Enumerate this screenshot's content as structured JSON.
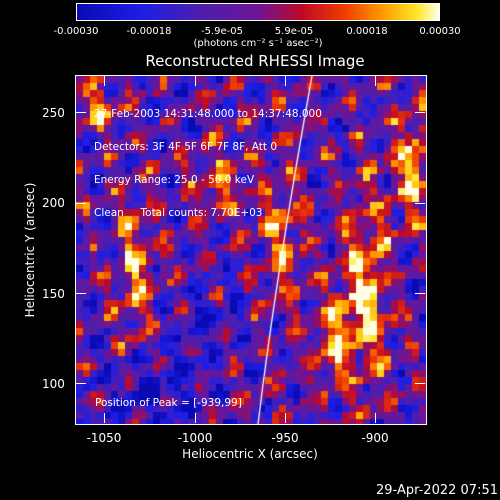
{
  "colorbar": {
    "ticks": [
      "-0.00030",
      "-0.00018",
      "-5.9e-05",
      "5.9e-05",
      "0.00018",
      "0.00030"
    ],
    "unit": "(photons cm⁻² s⁻¹ asec⁻²)"
  },
  "title": "Reconstructed RHESSI Image",
  "info": {
    "line1": "27-Feb-2003 14:31:48.000 to 14:37:48.000",
    "line2": "Detectors: 3F 4F 5F 6F 7F 8F, Att 0",
    "line3": "Energy Range: 25.0 - 50.0 keV",
    "line4": "Clean     Total counts: 7.70E+03"
  },
  "peak": "Position of Peak = [-939,99]",
  "x_ticks": [
    "-1050",
    "-1000",
    "-950",
    "-900"
  ],
  "y_ticks": [
    "250",
    "200",
    "150",
    "100"
  ],
  "xlabel": "Heliocentric X (arcsec)",
  "ylabel": "Heliocentric Y (arcsec)",
  "timestamp": "29-Apr-2022 07:51"
}
